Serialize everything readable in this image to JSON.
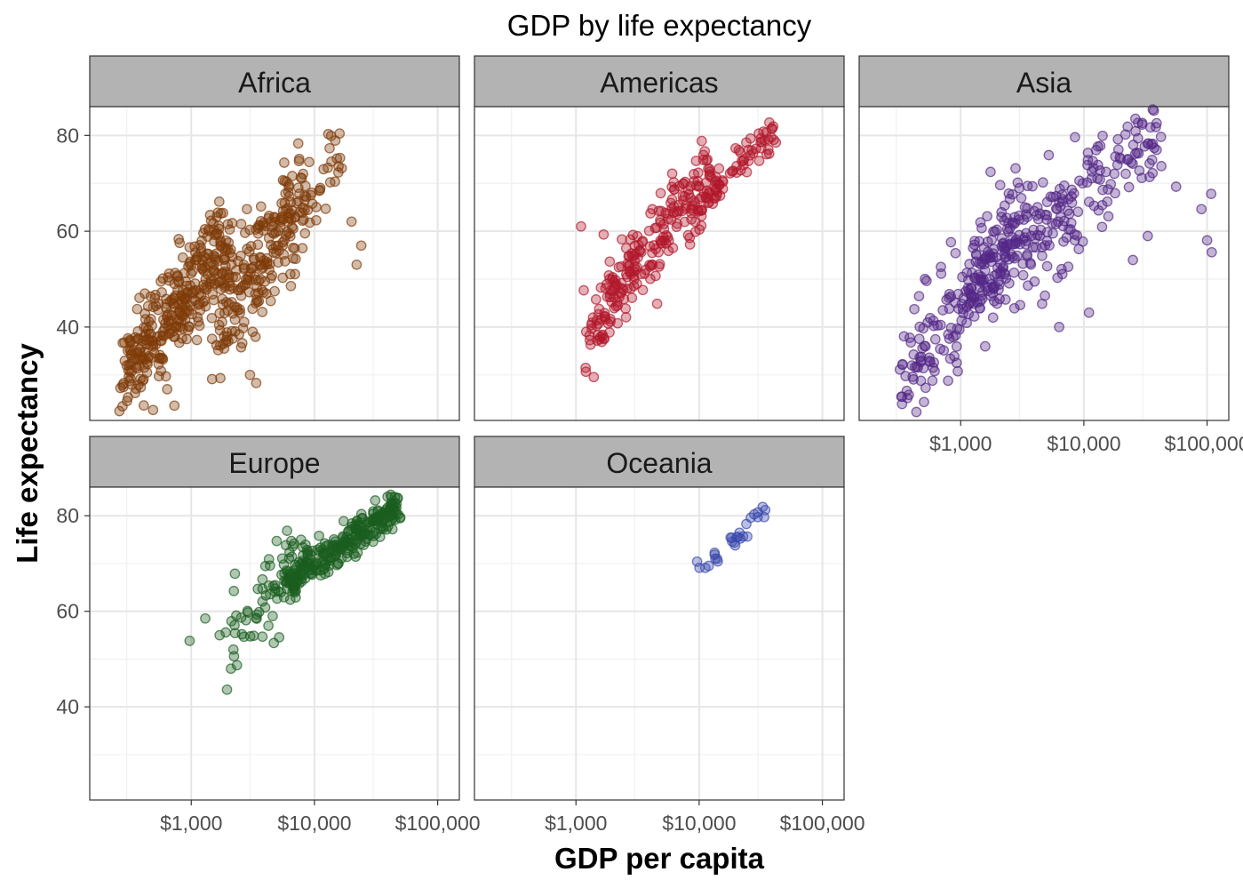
{
  "chart_data": {
    "type": "scatter",
    "title": "GDP by life expectancy",
    "xlabel": "GDP per capita",
    "ylabel": "Life expectancy",
    "x_scale": "log10",
    "xlim": [
      150,
      150000
    ],
    "ylim": [
      20.5,
      86
    ],
    "x_ticks": [
      1000,
      10000,
      100000
    ],
    "x_tick_labels": [
      "$1,000",
      "$10,000",
      "$100,000"
    ],
    "y_ticks": [
      40,
      60,
      80
    ],
    "y_tick_labels": [
      "40",
      "60",
      "80"
    ],
    "grid": true,
    "point_opacity": 0.35,
    "panels": [
      {
        "name": "Africa",
        "color": "#7f3b08",
        "clusters": [
          {
            "gdp_range": [
              280,
              2000
            ],
            "life_range": [
              30,
              58
            ],
            "n": 330,
            "jitter": 5
          },
          {
            "gdp_range": [
              1500,
              8000
            ],
            "life_range": [
              38,
              66
            ],
            "n": 170,
            "jitter": 6
          },
          {
            "gdp_range": [
              2500,
              16000
            ],
            "life_range": [
              48,
              76
            ],
            "n": 80,
            "jitter": 5
          }
        ],
        "extra_points": [
          [
            730,
            23.6
          ],
          [
            420,
            47
          ],
          [
            24000,
            57
          ],
          [
            22000,
            53
          ],
          [
            20000,
            62
          ],
          [
            3000,
            30
          ],
          [
            380,
            32
          ]
        ]
      },
      {
        "name": "Americas",
        "color": "#b2182b",
        "clusters": [
          {
            "gdp_range": [
              1200,
              13000
            ],
            "life_range": [
              38,
              74
            ],
            "n": 230,
            "jitter": 4
          },
          {
            "gdp_range": [
              9000,
              40000
            ],
            "life_range": [
              65,
              80
            ],
            "n": 70,
            "jitter": 2
          }
        ],
        "extra_points": [
          [
            1700,
            37.5
          ],
          [
            1100,
            61
          ],
          [
            42000,
            78.5
          ],
          [
            35000,
            80.6
          ]
        ]
      },
      {
        "name": "Asia",
        "color": "#542788",
        "clusters": [
          {
            "gdp_range": [
              330,
              3000
            ],
            "life_range": [
              28,
              62
            ],
            "n": 160,
            "jitter": 6
          },
          {
            "gdp_range": [
              1000,
              40000
            ],
            "life_range": [
              45,
              82
            ],
            "n": 260,
            "jitter": 6
          }
        ],
        "extra_points": [
          [
            109000,
            55.6
          ],
          [
            100000,
            58.1
          ],
          [
            108000,
            67.8
          ],
          [
            90000,
            64.6
          ],
          [
            56000,
            69.3
          ],
          [
            33000,
            59
          ],
          [
            25000,
            54
          ],
          [
            6300,
            40
          ],
          [
            11000,
            43
          ],
          [
            790,
            28.8
          ]
        ]
      },
      {
        "name": "Europe",
        "color": "#1b5e20",
        "clusters": [
          {
            "gdp_range": [
              2000,
              8000
            ],
            "life_range": [
              55,
              73
            ],
            "n": 70,
            "jitter": 4
          },
          {
            "gdp_range": [
              6000,
              48000
            ],
            "life_range": [
              66,
              82
            ],
            "n": 270,
            "jitter": 2
          }
        ],
        "extra_points": [
          [
            970,
            53.8
          ],
          [
            1950,
            43.6
          ],
          [
            2100,
            48
          ],
          [
            2200,
            52
          ],
          [
            1700,
            55
          ],
          [
            1300,
            58.5
          ]
        ]
      },
      {
        "name": "Oceania",
        "color": "#3949ab",
        "clusters": [
          {
            "gdp_range": [
              10000,
              35000
            ],
            "life_range": [
              69,
              81
            ],
            "n": 24,
            "jitter": 0.7
          }
        ],
        "extra_points": [
          [
            10040,
            69.1
          ],
          [
            34400,
            81.2
          ],
          [
            28000,
            80.3
          ],
          [
            14000,
            71
          ]
        ]
      }
    ]
  }
}
